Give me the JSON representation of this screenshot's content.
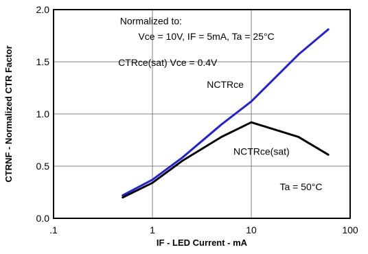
{
  "chart_data": {
    "type": "line",
    "title": "",
    "xlabel": "IF - LED Current -  mA",
    "ylabel": "CTRNF - Normalized CTR Factor",
    "x_scale": "log",
    "xlim": [
      0.1,
      100
    ],
    "ylim": [
      0.0,
      2.0
    ],
    "grid": true,
    "x_ticks": [
      0.1,
      1,
      10,
      100
    ],
    "x_tick_labels": [
      ".1",
      "1",
      "10",
      "100"
    ],
    "y_ticks": [
      0.0,
      0.5,
      1.0,
      1.5,
      2.0
    ],
    "y_tick_labels": [
      "0.0",
      "0.5",
      "1.0",
      "1.5",
      "2.0"
    ],
    "series": [
      {
        "name": "NCTRce",
        "color": "#2020e0",
        "x": [
          0.5,
          1,
          2,
          5,
          10,
          30,
          60
        ],
        "y": [
          0.22,
          0.37,
          0.58,
          0.9,
          1.12,
          1.57,
          1.81
        ]
      },
      {
        "name": "NCTRce(sat)",
        "color": "#000000",
        "x": [
          0.5,
          1,
          2,
          5,
          10,
          30,
          60
        ],
        "y": [
          0.2,
          0.34,
          0.55,
          0.78,
          0.92,
          0.78,
          0.61
        ]
      }
    ],
    "annotations": [
      {
        "id": "normalized-to",
        "text": "Normalized to:",
        "x": 0.47,
        "y": 1.86
      },
      {
        "id": "conditions",
        "text": "Vce = 10V, IF = 5mA, Ta = 25°C",
        "x": 0.72,
        "y": 1.71
      },
      {
        "id": "sat-condition",
        "text": "CTRce(sat) Vce = 0.4V",
        "x": 0.45,
        "y": 1.46
      },
      {
        "id": "label-nctrce",
        "text": "NCTRce",
        "x": 3.55,
        "y": 1.25
      },
      {
        "id": "label-nctrce-sat",
        "text": "NCTRce(sat)",
        "x": 6.6,
        "y": 0.61
      },
      {
        "id": "temperature",
        "text": "Ta = 50°C",
        "x": 19.4,
        "y": 0.27
      }
    ]
  }
}
